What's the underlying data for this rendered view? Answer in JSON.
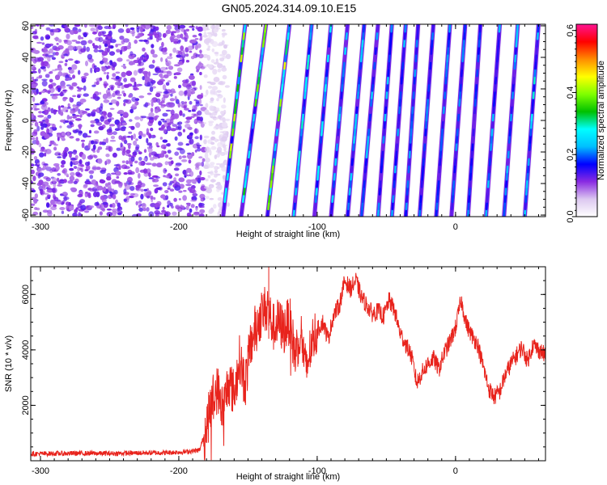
{
  "title": "GN05.2024.314.09.10.E15",
  "chart_data": [
    {
      "type": "heatmap",
      "xlabel": "Height of straight line (km)",
      "ylabel": "Frequency (Hz)",
      "xlim": [
        -307,
        65
      ],
      "ylim": [
        -61,
        61
      ],
      "x_ticks": [
        -300,
        -200,
        -100,
        0
      ],
      "x_tick_labels": [
        "-300",
        "-200",
        "-100",
        "0"
      ],
      "y_ticks": [
        -60,
        -40,
        -20,
        0,
        20,
        40,
        60
      ],
      "y_tick_labels": [
        "-60",
        "-40",
        "-20",
        "0",
        "20",
        "40",
        "60"
      ],
      "colorbar": {
        "label": "Normalized spectral amplitude",
        "range": [
          0.0,
          0.62
        ],
        "ticks": [
          0.0,
          0.2,
          0.4,
          0.6
        ],
        "tick_labels": [
          "0.0",
          "0.2",
          "0.4",
          "0.6"
        ],
        "colors": [
          "#ffffff",
          "#dcc8f0",
          "#8a2be2",
          "#0000ff",
          "#00bfff",
          "#00ffff",
          "#00c000",
          "#7fff00",
          "#ffff00",
          "#ff8c00",
          "#ff0000",
          "#ff1493"
        ]
      },
      "noise_region_x": [
        -307,
        -170
      ],
      "stripes": [
        {
          "x_bottom": -168,
          "x_top": -152,
          "peak": 0.45
        },
        {
          "x_bottom": -155,
          "x_top": -137,
          "peak": 0.42
        },
        {
          "x_bottom": -136,
          "x_top": -120,
          "peak": 0.45
        },
        {
          "x_bottom": -117,
          "x_top": -104,
          "peak": 0.3
        },
        {
          "x_bottom": -102,
          "x_top": -90,
          "peak": 0.28
        },
        {
          "x_bottom": -90,
          "x_top": -78,
          "peak": 0.25
        },
        {
          "x_bottom": -78,
          "x_top": -66,
          "peak": 0.25
        },
        {
          "x_bottom": -68,
          "x_top": -56,
          "peak": 0.24
        },
        {
          "x_bottom": -56,
          "x_top": -46,
          "peak": 0.24
        },
        {
          "x_bottom": -46,
          "x_top": -36,
          "peak": 0.24
        },
        {
          "x_bottom": -36,
          "x_top": -27,
          "peak": 0.22
        },
        {
          "x_bottom": -26,
          "x_top": -16,
          "peak": 0.22
        },
        {
          "x_bottom": -14,
          "x_top": -4,
          "peak": 0.22
        },
        {
          "x_bottom": -3,
          "x_top": 7,
          "peak": 0.22
        },
        {
          "x_bottom": 9,
          "x_top": 18,
          "peak": 0.22
        },
        {
          "x_bottom": 22,
          "x_top": 32,
          "peak": 0.24
        },
        {
          "x_bottom": 35,
          "x_top": 45,
          "peak": 0.26
        },
        {
          "x_bottom": 50,
          "x_top": 60,
          "peak": 0.3
        }
      ]
    },
    {
      "type": "line",
      "xlabel": "Height of straight line (km)",
      "ylabel": "SNR (10 * v/v)",
      "xlim": [
        -307,
        65
      ],
      "ylim": [
        0,
        7000
      ],
      "x_ticks": [
        -300,
        -200,
        -100,
        0
      ],
      "x_tick_labels": [
        "-300",
        "-200",
        "-100",
        "0"
      ],
      "y_ticks": [
        2000,
        4000,
        6000
      ],
      "y_tick_labels": [
        "2000",
        "4000",
        "6000"
      ],
      "color": "#e8231c",
      "x": [
        -307,
        -290,
        -270,
        -250,
        -230,
        -210,
        -195,
        -185,
        -180,
        -176,
        -172,
        -168,
        -164,
        -160,
        -156,
        -152,
        -148,
        -144,
        -140,
        -136,
        -132,
        -128,
        -124,
        -120,
        -116,
        -112,
        -108,
        -104,
        -100,
        -96,
        -92,
        -88,
        -84,
        -80,
        -76,
        -72,
        -68,
        -64,
        -60,
        -56,
        -52,
        -48,
        -44,
        -40,
        -36,
        -32,
        -28,
        -24,
        -20,
        -16,
        -12,
        -8,
        -4,
        0,
        4,
        8,
        12,
        16,
        20,
        24,
        28,
        32,
        36,
        40,
        44,
        48,
        52,
        56,
        60,
        65
      ],
      "y": [
        250,
        260,
        270,
        260,
        280,
        290,
        320,
        380,
        1200,
        2200,
        2600,
        1800,
        2900,
        2400,
        3700,
        2800,
        4200,
        4900,
        5300,
        5600,
        4800,
        5000,
        4700,
        5100,
        3800,
        4700,
        3200,
        4300,
        4700,
        5000,
        4400,
        5300,
        5600,
        6500,
        6200,
        6500,
        5900,
        5600,
        5300,
        5400,
        5200,
        5800,
        5400,
        4600,
        4200,
        3800,
        2800,
        3200,
        3500,
        3700,
        3300,
        3900,
        4300,
        4800,
        5800,
        4900,
        4500,
        4200,
        3400,
        2600,
        2300,
        2500,
        3100,
        3500,
        3800,
        4100,
        3600,
        4200,
        4000,
        3800
      ]
    }
  ]
}
